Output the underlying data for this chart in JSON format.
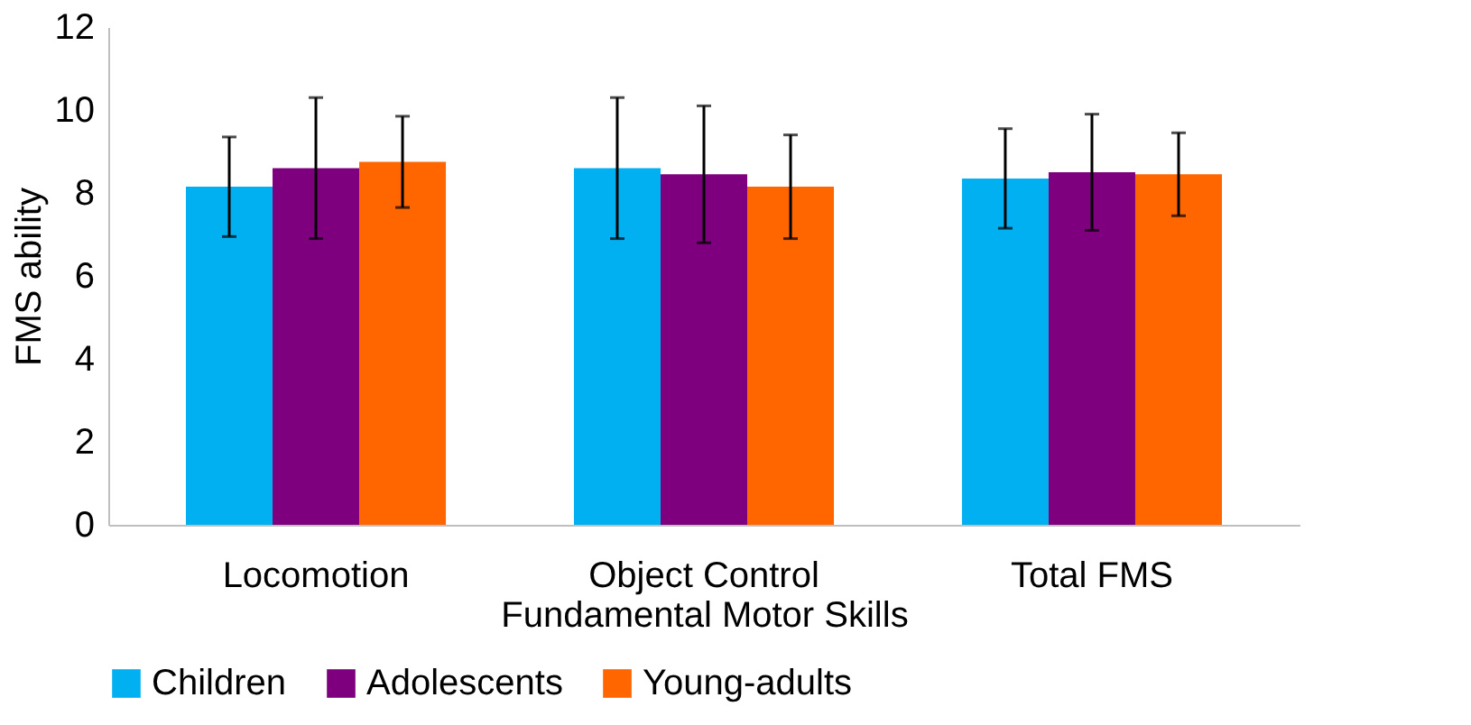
{
  "chart_data": {
    "type": "bar",
    "xlabel": "Fundamental Motor Skills",
    "ylabel": "FMS ability",
    "categories": [
      "Locomotion",
      "Object Control",
      "Total FMS"
    ],
    "series": [
      {
        "name": "Children",
        "color": "#00b0f0",
        "values": [
          8.15,
          8.6,
          8.35
        ],
        "errors": [
          1.2,
          1.7,
          1.2
        ]
      },
      {
        "name": "Adolescents",
        "color": "#7f007f",
        "values": [
          8.6,
          8.45,
          8.5
        ],
        "errors": [
          1.7,
          1.65,
          1.4
        ]
      },
      {
        "name": "Young-adults",
        "color": "#ff6600",
        "values": [
          8.75,
          8.15,
          8.45
        ],
        "errors": [
          1.1,
          1.25,
          1.0
        ]
      }
    ],
    "ylim": [
      0,
      12
    ],
    "yticks": [
      0,
      2,
      4,
      6,
      8,
      10,
      12
    ],
    "grid": false,
    "legend": "bottom"
  }
}
